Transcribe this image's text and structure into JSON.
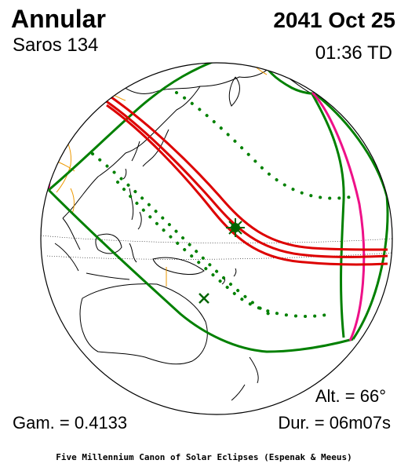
{
  "header": {
    "eclipse_type": "Annular",
    "date": "2041 Oct 25",
    "saros": "Saros 134",
    "time": "01:36 TD"
  },
  "stats": {
    "altitude": "Alt. = 66°",
    "gamma": "Gam. = 0.4133",
    "duration": "Dur. = 06m07s"
  },
  "footer": "Five Millennium Canon of Solar Eclipses (Espenak & Meeus)",
  "colors": {
    "central_path": "#dd0000",
    "penumbral_limits": "#008000",
    "rise_set": "#ee1188",
    "borders": "#ee9900",
    "night": "#bbbbbb"
  },
  "markers": {
    "greatest_eclipse": "star",
    "subsolar_point": "x-mark"
  }
}
